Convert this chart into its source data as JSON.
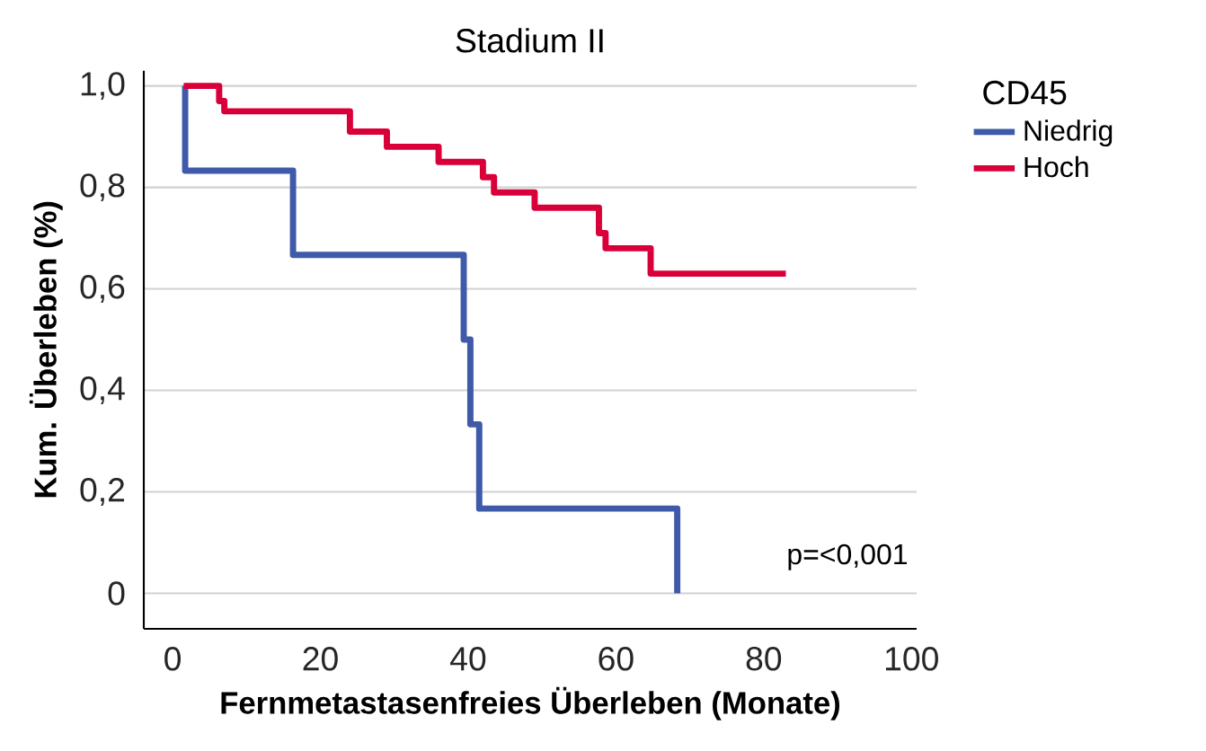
{
  "chart_data": {
    "type": "step",
    "title": "Stadium II",
    "xlabel": "Fernmetastasenfreies Überleben (Monate)",
    "ylabel": "Kum. Überleben (%)",
    "legend_title": "CD45",
    "series": [
      {
        "name": "Niedrig",
        "color": "#3f5aa8",
        "x": [
          1.7,
          1.7,
          16.3,
          39.4,
          40.3,
          41.5,
          68.3
        ],
        "values": [
          1,
          0.833,
          0.667,
          0.5,
          0.333,
          0.167,
          0
        ]
      },
      {
        "name": "Hoch",
        "color": "#d9003a",
        "x": [
          1.5,
          6.3,
          7,
          24,
          29,
          36,
          42,
          43.5,
          49,
          57.7,
          58.6,
          64.7,
          83
        ],
        "values": [
          1,
          0.97,
          0.95,
          0.91,
          0.88,
          0.85,
          0.82,
          0.79,
          0.76,
          0.71,
          0.68,
          0.63,
          0.63
        ]
      }
    ],
    "xlim": [
      -3.9,
      100.7
    ],
    "ylim": [
      -0.07,
      1.03
    ],
    "xticks": [
      0,
      20,
      40,
      60,
      80,
      100
    ],
    "yticks": [
      {
        "value": 0,
        "label": "0"
      },
      {
        "value": 0.2,
        "label": "0,2"
      },
      {
        "value": 0.4,
        "label": "0,4"
      },
      {
        "value": 0.6,
        "label": "0,6"
      },
      {
        "value": 0.8,
        "label": "0,8"
      },
      {
        "value": 1,
        "label": "1,0"
      }
    ],
    "grid": "y",
    "legend": "right",
    "line_style": "solid",
    "marker": "none",
    "annotations": [
      "p=<0,001"
    ]
  }
}
